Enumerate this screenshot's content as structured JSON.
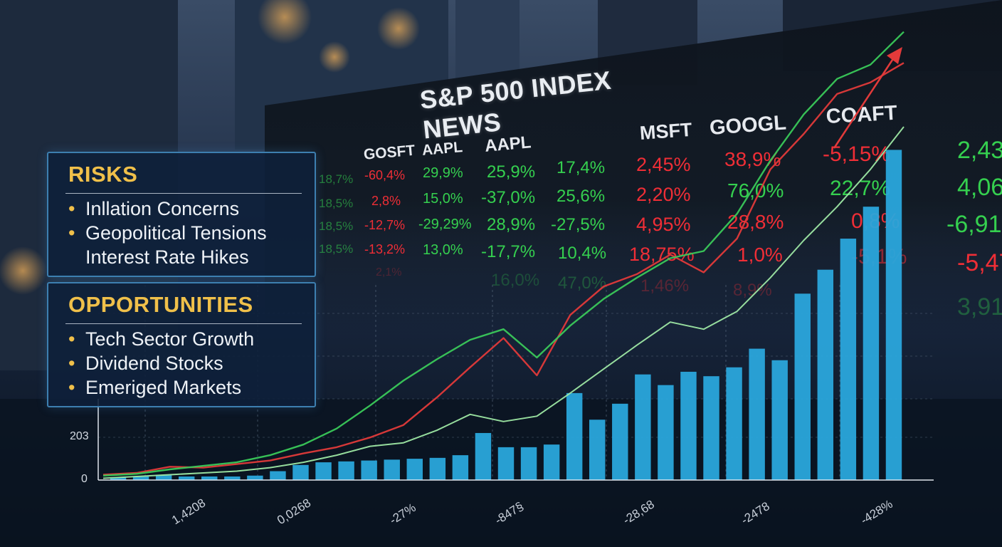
{
  "board": {
    "title": "S&P 500 INDEX NEWS",
    "tickers": [
      "GOSFT",
      "AAPL",
      "AAPL",
      "MSFT",
      "GOOGL",
      "COAFT"
    ],
    "rows": [
      [
        "18,7%",
        "-60,4%",
        "29,9%",
        "25,9%",
        "17,4%",
        "2,45%",
        "38,9%",
        "-5,15%",
        "2,43"
      ],
      [
        "18,5%",
        "2,8%",
        "15,0%",
        "-37,0%",
        "25,6%",
        "2,20%",
        "76,0%",
        "22,7%",
        "4,06"
      ],
      [
        "18,5%",
        "-12,7%",
        "-29,29%",
        "28,9%",
        "-27,5%",
        "4,95%",
        "28,8%",
        "0,8%",
        "-6,91"
      ],
      [
        "18,5%",
        "-13,2%",
        "13,0%",
        "-17,7%",
        "10,4%",
        "18,75%",
        "1,0%",
        "-5,1%",
        "-5,47"
      ],
      [
        "",
        "2,1%",
        "",
        "16,0%",
        "47,0%",
        "1,46%",
        "8,9%",
        "",
        "3,91"
      ]
    ]
  },
  "risks": {
    "title": "RISKS",
    "items": [
      "Inllation Concerns",
      "Geopolitical Tensions",
      "Interest Rate Hikes"
    ]
  },
  "opportunities": {
    "title": "OPPORTUNITIES",
    "items": [
      "Tech Sector Growth",
      "Dividend Stocks",
      "Emeriged Markets"
    ]
  },
  "chart_data": {
    "type": "bar",
    "title": "",
    "xlabel": "",
    "ylabel": "",
    "y_tick_labels": [
      "0",
      "203"
    ],
    "x_tick_labels": [
      "1,4208",
      "0,0268",
      "-27%",
      "-847§",
      "-28,68",
      "-2478",
      "-428%"
    ],
    "values": [
      3,
      4,
      6,
      4,
      4,
      4,
      5,
      10,
      17,
      20,
      21,
      22,
      23,
      24,
      25,
      28,
      53,
      37,
      37,
      40,
      98,
      68,
      86,
      119,
      107,
      122,
      117,
      127,
      148,
      135,
      210,
      237,
      272,
      308,
      372
    ],
    "overlays": [
      {
        "type": "line",
        "color": "#e23a3a",
        "values": [
          6,
          8,
          15,
          14,
          18,
          22,
          30,
          37,
          48,
          62,
          93,
          127,
          160,
          118,
          186,
          218,
          232,
          254,
          234,
          272,
          350,
          390,
          435,
          448,
          470
        ]
      },
      {
        "type": "line",
        "color": "#3ac95a",
        "values": [
          5,
          7,
          12,
          16,
          20,
          28,
          40,
          58,
          84,
          112,
          136,
          158,
          170,
          138,
          174,
          204,
          228,
          250,
          258,
          300,
          360,
          412,
          452,
          468,
          505
        ]
      },
      {
        "type": "line",
        "color": "#9ee8a4",
        "values": [
          2,
          4,
          6,
          8,
          10,
          14,
          20,
          28,
          38,
          42,
          56,
          74,
          66,
          72,
          98,
          125,
          152,
          178,
          170,
          190,
          228,
          270,
          308,
          350,
          398
        ]
      }
    ],
    "arrow_color": "#e23a3a",
    "bar_color": "#2aa6dc",
    "grid": true
  }
}
